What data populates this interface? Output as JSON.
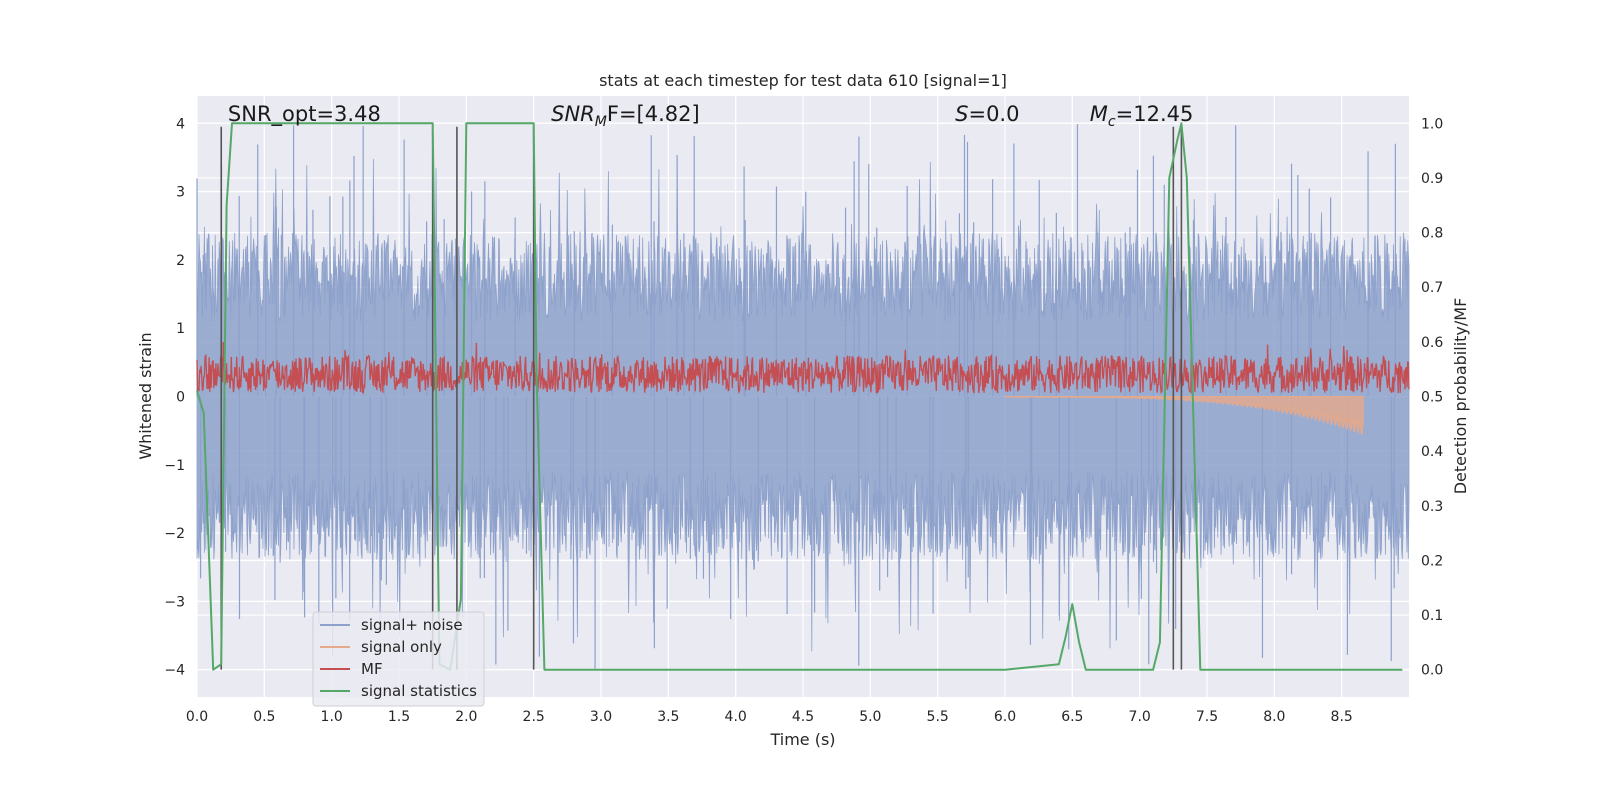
{
  "chart_data": {
    "type": "line",
    "title": "stats at each timestep for test data 610 [signal=1]",
    "xlabel": "Time (s)",
    "ylabel": "Whitened strain",
    "ylabel_right": "Detection probability/MF",
    "xlim": [
      0.0,
      9.0
    ],
    "ylim": [
      -4.4,
      4.4
    ],
    "ylim_right": [
      -0.05,
      1.05
    ],
    "x_ticks": [
      "0.0",
      "0.5",
      "1.0",
      "1.5",
      "2.0",
      "2.5",
      "3.0",
      "3.5",
      "4.0",
      "4.5",
      "5.0",
      "5.5",
      "6.0",
      "6.5",
      "7.0",
      "7.5",
      "8.0",
      "8.5"
    ],
    "y_ticks": [
      "−4",
      "−3",
      "−2",
      "−1",
      "0",
      "1",
      "2",
      "3",
      "4"
    ],
    "y_ticks_right": [
      "0.0",
      "0.1",
      "0.2",
      "0.3",
      "0.4",
      "0.5",
      "0.6",
      "0.7",
      "0.8",
      "0.9",
      "1.0"
    ],
    "grid": true,
    "legend_position": "lower-left",
    "annotations": [
      {
        "prefix": "SNR_opt=3.48",
        "sub": "",
        "suffix": "",
        "x": 0.2,
        "italic": false
      },
      {
        "prefix": "SNR",
        "sub": "M",
        "suffix": "F=[4.82]",
        "x": 2.6,
        "italic": true
      },
      {
        "prefix": "S",
        "sub": "",
        "suffix": "=0.0",
        "x": 5.6,
        "italic": true
      },
      {
        "prefix": "M",
        "sub": "c",
        "suffix": "=12.45",
        "x": 6.6,
        "italic": true
      }
    ],
    "series": [
      {
        "name": "signal+ noise",
        "color": "#8da1cb",
        "style": "noise band, amplitude about ±2 to ±4"
      },
      {
        "name": "signal only",
        "color": "#e6a98a",
        "style": "chirp growing from 6.0 s to peak near 8.65 s"
      },
      {
        "name": "MF",
        "color": "#c44e52",
        "style": "values mostly between 0 and 0.8 on left axis"
      },
      {
        "name": "signal statistics",
        "color": "#55a868",
        "x": [
          0.0,
          0.05,
          0.12,
          0.18,
          0.22,
          0.26,
          1.75,
          1.8,
          1.88,
          1.96,
          2.0,
          2.5,
          2.52,
          2.58,
          2.8,
          6.0,
          6.4,
          6.45,
          6.5,
          6.55,
          6.6,
          7.1,
          7.15,
          7.22,
          7.28,
          7.31,
          7.35,
          7.45,
          8.95
        ],
        "values": [
          0.51,
          0.47,
          0.0,
          0.01,
          0.85,
          1.0,
          1.0,
          0.01,
          0.0,
          0.13,
          1.0,
          1.0,
          0.55,
          0.0,
          0.0,
          0.0,
          0.01,
          0.06,
          0.12,
          0.05,
          0.0,
          0.0,
          0.05,
          0.9,
          0.97,
          1.0,
          0.9,
          0.0,
          0.0
        ]
      }
    ],
    "vertical_lines_x": [
      0.18,
      1.75,
      1.93,
      2.5,
      7.25,
      7.31
    ]
  }
}
